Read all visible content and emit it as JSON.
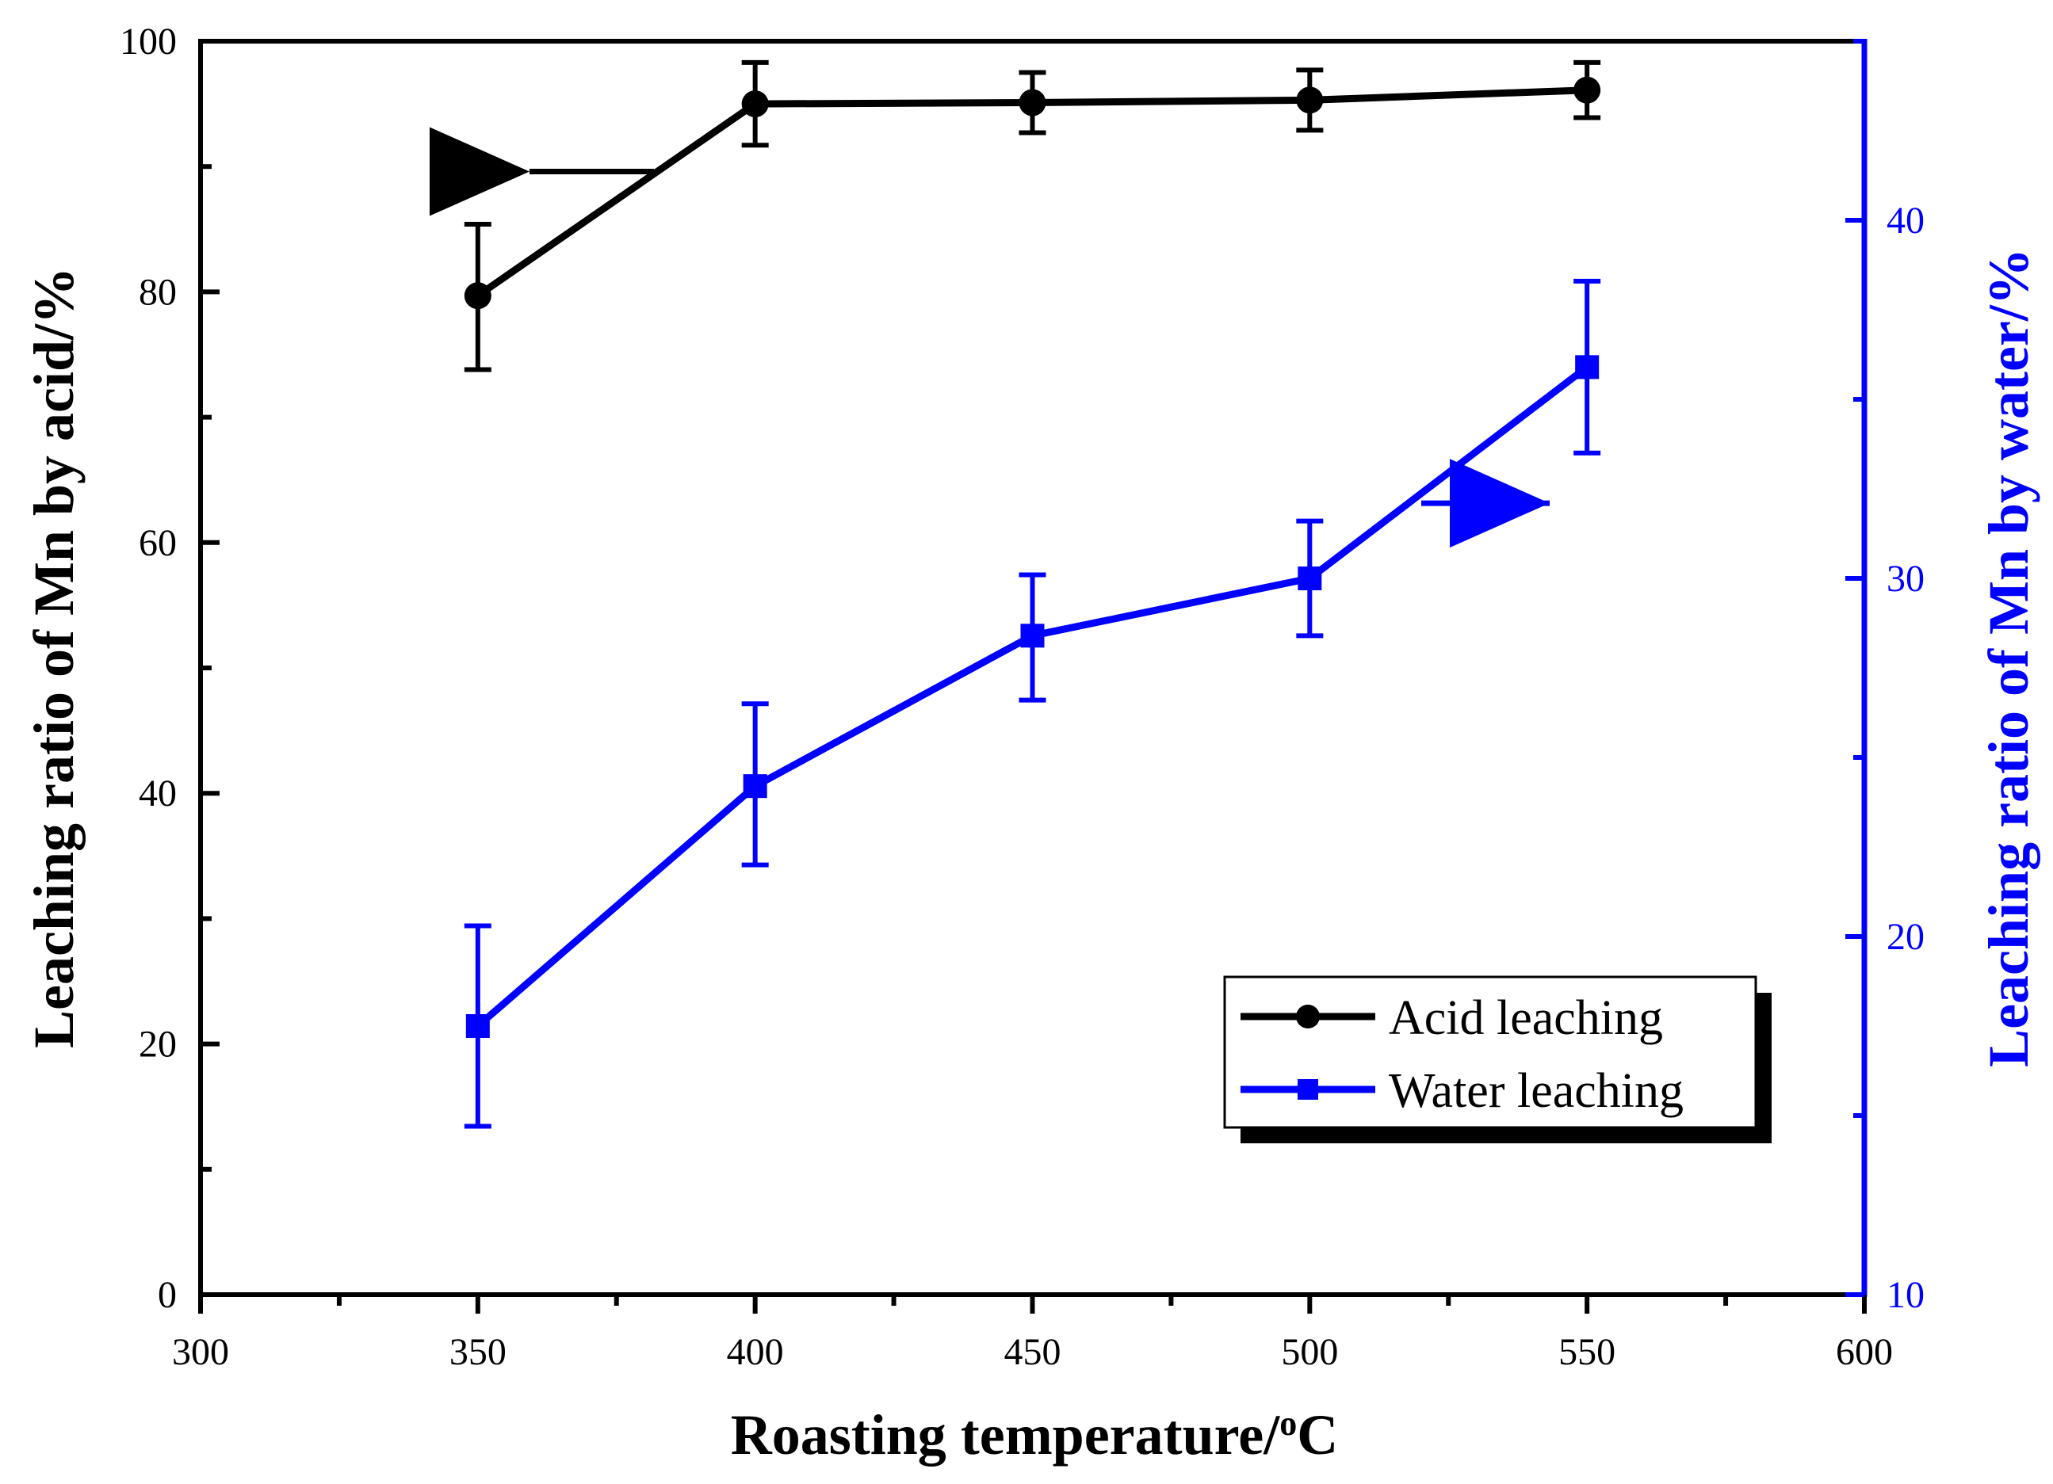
{
  "chart_data": {
    "type": "line",
    "xlabel_main": "Roasting temperature/",
    "xlabel_sup": "o",
    "xlabel_unit": "C",
    "ylabel_left": "Leaching ratio of Mn by acid/%",
    "ylabel_right": "Leaching ratio of Mn by water/%",
    "xlim": [
      300,
      600
    ],
    "ylim_left": [
      0,
      100
    ],
    "ylim_right": [
      10,
      45
    ],
    "x_ticks": [
      "300",
      "350",
      "400",
      "450",
      "500",
      "550",
      "600"
    ],
    "y_left_ticks": [
      "0",
      "20",
      "40",
      "60",
      "80",
      "100"
    ],
    "y_right_ticks": [
      "10",
      "20",
      "30",
      "40"
    ],
    "x": [
      350,
      400,
      450,
      500,
      550
    ],
    "series": [
      {
        "name": "Acid leaching",
        "axis": "left",
        "color": "#000000",
        "marker": "circle",
        "values": [
          79.7,
          95.0,
          95.1,
          95.3,
          96.1
        ],
        "err_low": [
          73.8,
          91.7,
          92.7,
          92.9,
          93.9
        ],
        "err_high": [
          85.4,
          98.3,
          97.5,
          97.7,
          98.3
        ]
      },
      {
        "name": "Water leaching",
        "axis": "right",
        "color": "#0000ff",
        "marker": "square",
        "values": [
          17.5,
          24.2,
          28.4,
          30.0,
          35.9
        ],
        "err_low": [
          14.7,
          22.0,
          26.6,
          28.4,
          33.5
        ],
        "err_high": [
          20.3,
          26.5,
          30.1,
          31.6,
          38.3
        ]
      }
    ],
    "annotations": [
      {
        "type": "arrow",
        "direction": "left",
        "series": "Acid leaching",
        "meaning": "left axis"
      },
      {
        "type": "arrow",
        "direction": "right",
        "series": "Water leaching",
        "meaning": "right axis"
      }
    ],
    "legend_position": "bottom-right",
    "grid": false
  }
}
